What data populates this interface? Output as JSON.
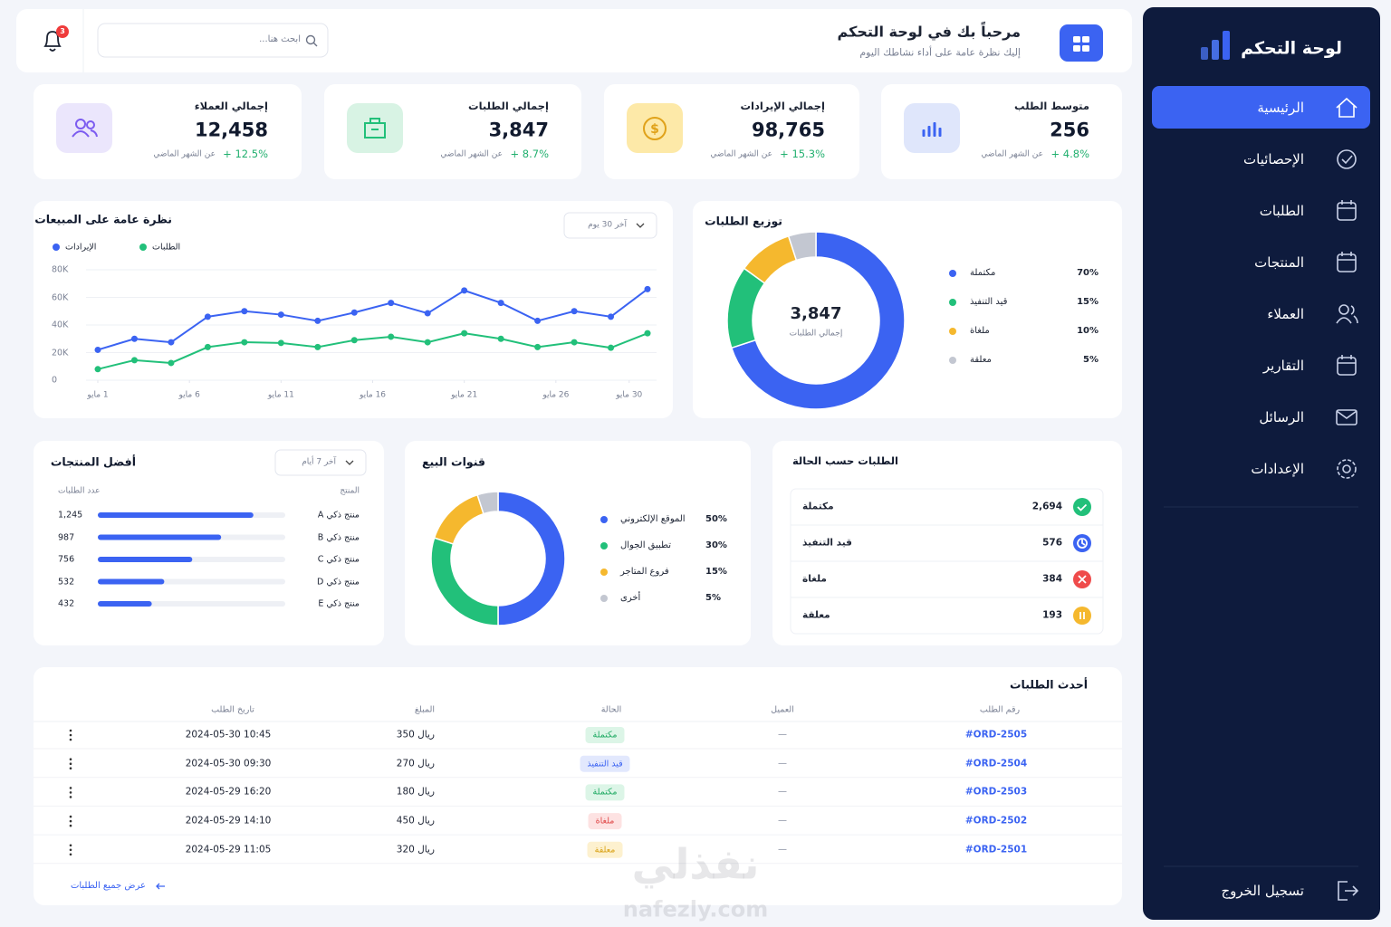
{
  "sidebar": {
    "title": "لوحة التحكم",
    "menu": [
      "الرئيسية",
      "الإحصائيات",
      "الطلبات",
      "المنتجات",
      "العملاء",
      "التقارير",
      "الرسائل",
      "الإعدادات"
    ],
    "logout": "تسجيل الخروج"
  },
  "header": {
    "title": "مرحباً بك في لوحة التحكم",
    "subtitle": "إليك نظرة عامة على أداء نشاطك اليوم",
    "search_placeholder": "ابحث هنا...",
    "notification_count": 3
  },
  "stats": [
    {
      "label": "متوسط الطلب",
      "value": "256",
      "change": "+ 4.8%",
      "note": "عن الشهر الماضي"
    },
    {
      "label": "إجمالي الإيرادات",
      "value": "98,765",
      "change": "+ 15.3%",
      "note": "عن الشهر الماضي"
    },
    {
      "label": "إجمالي الطلبات",
      "value": "3,847",
      "change": "+ 8.7%",
      "note": "عن الشهر الماضي"
    },
    {
      "label": "إجمالي العملاء",
      "value": "12,458",
      "change": "+ 12.5%",
      "note": "عن الشهر الماضي"
    }
  ],
  "chart_data": [
    {
      "type": "line",
      "title": "نظرة عامة على المبيعات",
      "filter": "آخر 30 يوم",
      "x": [
        1,
        3,
        5,
        7,
        9,
        11,
        13,
        15,
        17,
        19,
        21,
        23,
        25,
        27,
        29,
        31
      ],
      "xlim": [
        1,
        31
      ],
      "xticks": [
        {
          "value": 1,
          "label": "1 مايو"
        },
        {
          "value": 6,
          "label": "6 مايو"
        },
        {
          "value": 11,
          "label": "11 مايو"
        },
        {
          "value": 16,
          "label": "16 مايو"
        },
        {
          "value": 21,
          "label": "21 مايو"
        },
        {
          "value": 26,
          "label": "26 مايو"
        },
        {
          "value": 30,
          "label": "30 مايو"
        }
      ],
      "ylim": [
        0,
        80000
      ],
      "yticks": [
        0,
        {
          "value": 20000,
          "label": "20K"
        },
        {
          "value": 40000,
          "label": "40K"
        },
        {
          "value": 60000,
          "label": "60K"
        },
        {
          "value": 80000,
          "label": "80K"
        }
      ],
      "grid": true,
      "series": [
        {
          "name": "الإيرادات",
          "color": "#3b63f2",
          "values": [
            22000,
            30000,
            27500,
            46000,
            50000,
            47500,
            43000,
            49000,
            56000,
            48500,
            65000,
            56000,
            43000,
            50000,
            46000,
            66000
          ]
        },
        {
          "name": "الطلبات",
          "color": "#22c07a",
          "values": [
            8000,
            14500,
            12500,
            24000,
            27500,
            27000,
            24000,
            29000,
            31500,
            27500,
            34000,
            30000,
            24000,
            27500,
            23500,
            34000
          ]
        }
      ]
    },
    {
      "type": "donut",
      "title": "توزيع الطلبات",
      "center_value": "3,847",
      "center_label": "إجمالي الطلبات",
      "categories": [
        "مكتملة",
        "قيد التنفيذ",
        "ملغاة",
        "معلقة"
      ],
      "values": [
        70,
        15,
        10,
        5
      ],
      "value_labels": [
        "70%",
        "15%",
        "10%",
        "5%"
      ],
      "colors": [
        "#3b63f2",
        "#22c07a",
        "#f5b82e",
        "#c3c7d1"
      ]
    },
    {
      "type": "hbar",
      "title": "أفضل المنتجات",
      "filter": "آخر 7 أيام",
      "category_header": "المنتج",
      "value_header": "عدد الطلبات",
      "categories": [
        "منتج ذكي A",
        "منتج ذكي B",
        "منتج ذكي C",
        "منتج ذكي D",
        "منتج ذكي E"
      ],
      "values": [
        1245,
        987,
        756,
        532,
        432
      ],
      "value_labels": [
        "1,245",
        "987",
        "756",
        "532",
        "432"
      ],
      "xlim": [
        0,
        1500
      ],
      "color": "#3b63f2"
    },
    {
      "type": "donut",
      "title": "قنوات البيع",
      "categories": [
        "الموقع الإلكتروني",
        "تطبيق الجوال",
        "فروع المتاجر",
        "أخرى"
      ],
      "values": [
        50,
        30,
        15,
        5
      ],
      "value_labels": [
        "50%",
        "30%",
        "15%",
        "5%"
      ],
      "colors": [
        "#3b63f2",
        "#22c07a",
        "#f5b82e",
        "#c3c7d1"
      ]
    }
  ],
  "status_summary": {
    "title": "الطلبات حسب الحالة",
    "rows": [
      {
        "label": "مكتملة",
        "count": "2,694",
        "color": "#22c07a"
      },
      {
        "label": "قيد التنفيذ",
        "count": "576",
        "color": "#3b63f2"
      },
      {
        "label": "ملغاة",
        "count": "384",
        "color": "#ef4b4b"
      },
      {
        "label": "معلقة",
        "count": "193",
        "color": "#f5b82e"
      }
    ]
  },
  "recent_orders": {
    "title": "أحدث الطلبات",
    "columns": [
      "رقم الطلب",
      "العميل",
      "الحالة",
      "المبلغ",
      "تاريخ الطلب"
    ],
    "rows": [
      [
        "#ORD-2505",
        "—",
        "مكتملة",
        "350 ريال",
        "2024-05-30 10:45"
      ],
      [
        "#ORD-2504",
        "—",
        "قيد التنفيذ",
        "270 ريال",
        "2024-05-30 09:30"
      ],
      [
        "#ORD-2503",
        "—",
        "مكتملة",
        "180 ريال",
        "2024-05-29 16:20"
      ],
      [
        "#ORD-2502",
        "—",
        "ملغاة",
        "450 ريال",
        "2024-05-29 14:10"
      ],
      [
        "#ORD-2501",
        "—",
        "معلقة",
        "320 ريال",
        "2024-05-29 11:05"
      ]
    ],
    "footer_link": "عرض جميع الطلبات"
  },
  "watermark": {
    "brand": "نفذلي",
    "domain": "nafezly.com"
  }
}
